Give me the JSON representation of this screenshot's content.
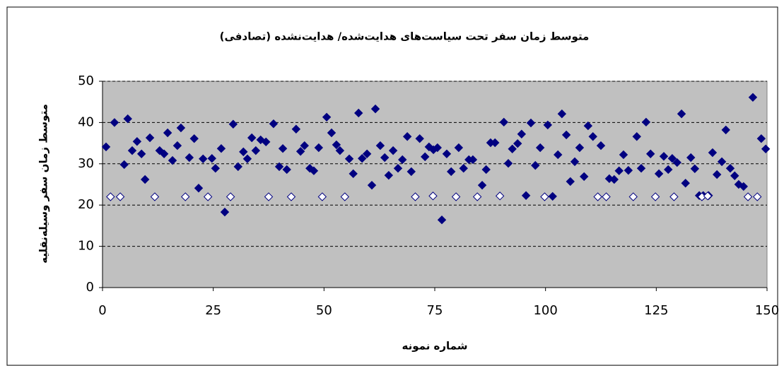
{
  "chart_data": {
    "type": "scatter",
    "title": "متوسط زمان سفر تحت سیاست‌های هدایت‌شده/ هدایت‌نشده (تصادفی)",
    "x_label": "شماره نمونه",
    "y_label": "متوسط زمان سفر وسیله‌نقلیه",
    "xlim": [
      0,
      150
    ],
    "xticks": [
      0,
      25,
      50,
      75,
      100,
      125,
      150
    ],
    "ylim": [
      0,
      50
    ],
    "yticks": [
      0,
      10,
      20,
      30,
      40,
      50
    ],
    "grid": true,
    "plot_background": "#c0c0c0",
    "series": [
      {
        "color": "#000080",
        "filled": true,
        "x": [
          0.8,
          2.7,
          4.9,
          5.7,
          6.7,
          7.8,
          8.8,
          9.6,
          10.7,
          12.9,
          13.9,
          14.7,
          15.8,
          16.9,
          17.7,
          19.6,
          20.7,
          21.7,
          22.7,
          24.7,
          25.5,
          26.8,
          27.6,
          29.5,
          30.6,
          31.8,
          32.7,
          33.7,
          34.6,
          35.7,
          36.9,
          38.6,
          39.9,
          40.7,
          41.6,
          43.7,
          44.7,
          45.6,
          46.8,
          47.7,
          48.8,
          50.6,
          51.7,
          52.8,
          53.6,
          55.7,
          56.6,
          57.8,
          58.6,
          59.7,
          60.8,
          61.6,
          62.7,
          63.7,
          64.6,
          65.6,
          66.7,
          67.7,
          68.8,
          69.7,
          71.6,
          72.8,
          73.7,
          74.7,
          75.6,
          76.6,
          77.7,
          78.7,
          80.4,
          81.5,
          82.7,
          83.6,
          85.7,
          86.6,
          87.6,
          88.6,
          90.6,
          91.6,
          92.5,
          93.7,
          94.6,
          95.6,
          96.7,
          97.7,
          98.8,
          100.5,
          101.6,
          102.8,
          103.7,
          104.7,
          105.6,
          106.6,
          107.7,
          108.7,
          109.6,
          110.7,
          112.5,
          114.4,
          115.5,
          116.6,
          117.6,
          118.7,
          120.6,
          121.6,
          122.7,
          123.7,
          125.6,
          126.7,
          127.7,
          128.6,
          129.7,
          130.7,
          131.6,
          132.8,
          133.7,
          134.7,
          135.6,
          136.8,
          137.7,
          138.7,
          139.8,
          140.7,
          141.7,
          142.7,
          143.6,
          144.7,
          146.8,
          148.7,
          149.7
        ],
        "values": [
          34.1,
          40,
          29.8,
          40.9,
          33.2,
          35.4,
          32.4,
          26.2,
          36.3,
          33.2,
          32.4,
          37.5,
          30.8,
          34.4,
          38.7,
          31.5,
          36.1,
          24.1,
          31.2,
          31.3,
          28.9,
          33.7,
          18.3,
          39.6,
          29.3,
          32.9,
          31.2,
          36.3,
          33.2,
          35.8,
          35.3,
          39.7,
          29.3,
          33.7,
          28.6,
          38.4,
          33,
          34.4,
          28.9,
          28.3,
          33.9,
          41.3,
          37.5,
          34.6,
          33.2,
          31.2,
          27.6,
          42.3,
          31.3,
          32.4,
          24.8,
          43.3,
          34.4,
          31.5,
          27.2,
          33.2,
          28.9,
          31,
          36.6,
          28.1,
          36.1,
          31.7,
          34.1,
          33.4,
          33.9,
          16.4,
          32.4,
          28.1,
          33.9,
          28.9,
          31,
          31,
          24.8,
          28.6,
          35.1,
          35.1,
          40.1,
          30.1,
          33.6,
          34.9,
          37.2,
          22.3,
          39.9,
          29.6,
          33.9,
          39.4,
          22.1,
          32.2,
          42.1,
          37,
          25.7,
          30.5,
          33.9,
          26.9,
          39.2,
          36.6,
          34.4,
          26.4,
          26.2,
          28.3,
          32.2,
          28.4,
          36.6,
          28.9,
          40.1,
          32.4,
          27.6,
          31.8,
          28.6,
          31.3,
          30.3,
          42.1,
          25.3,
          31.5,
          28.8,
          22.3,
          22.3,
          22.3,
          32.7,
          27.4,
          30.5,
          38.2,
          28.9,
          27.1,
          25,
          24.5,
          46.1,
          36.1,
          33.6
        ]
      },
      {
        "color": "#000080",
        "filled": false,
        "x": [
          1.8,
          4,
          11.8,
          18.7,
          23.8,
          28.9,
          37.5,
          42.6,
          49.6,
          54.7,
          70.6,
          74.6,
          79.8,
          84.6,
          89.7,
          99.8,
          111.8,
          113.7,
          119.8,
          124.8,
          129,
          135.3,
          136.6,
          145.7,
          147.8
        ],
        "values": [
          22,
          22,
          22,
          22,
          22,
          22,
          22,
          22,
          22,
          22,
          22,
          22.2,
          22,
          22,
          22.2,
          22,
          22,
          22,
          22,
          22,
          22,
          22,
          22.2,
          22,
          22
        ]
      }
    ]
  }
}
